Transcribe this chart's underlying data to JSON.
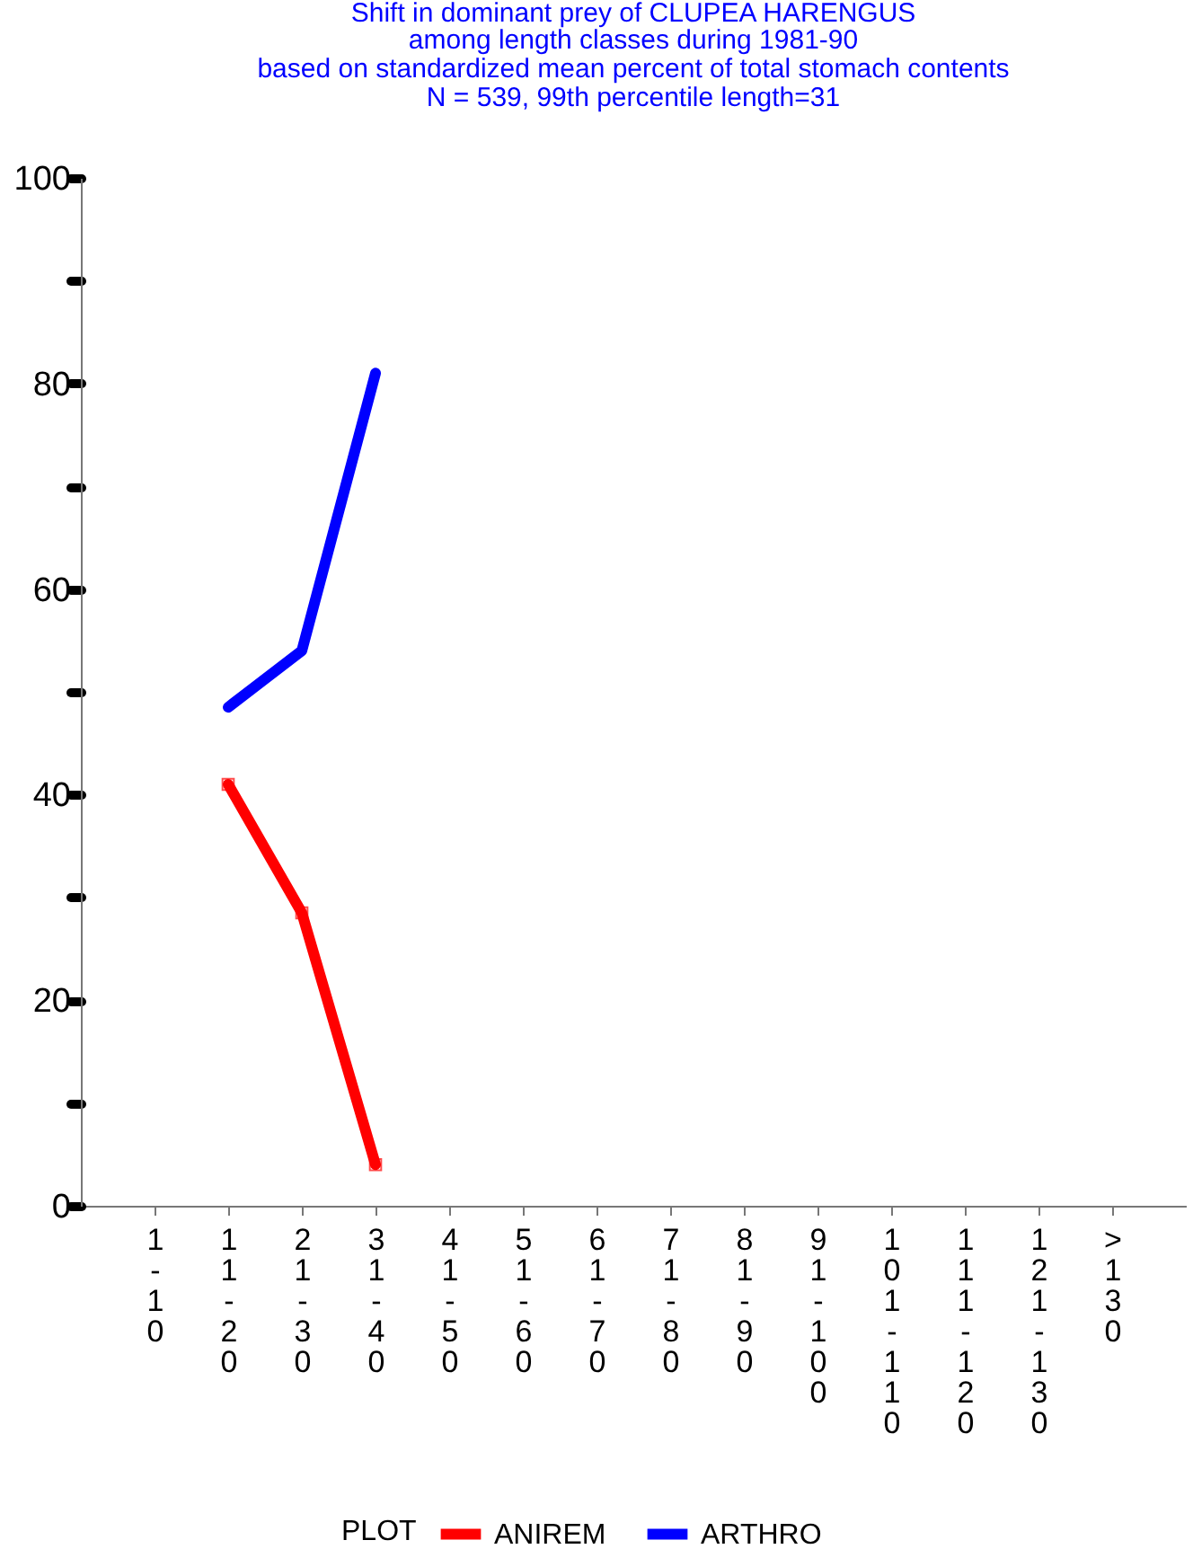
{
  "chart_data": {
    "type": "line",
    "title": "Shift in dominant prey of CLUPEA HARENGUS",
    "subtitle": "among length classes during 1981-90\nbased on standardized mean percent of  total stomach contents\nN = 539, 99th percentile  length=31",
    "categories": [
      "1-10",
      "11-20",
      "21-30",
      "31-40",
      "41-50",
      "51-60",
      "61-70",
      "71-80",
      "81-90",
      "91-100",
      "101-110",
      "111-120",
      "121-130",
      ">130"
    ],
    "series": [
      {
        "name": "ANIREM",
        "color": "#ff0000",
        "marker": "square",
        "values": [
          null,
          41,
          28.5,
          4,
          null,
          null,
          null,
          null,
          null,
          null,
          null,
          null,
          null,
          null
        ]
      },
      {
        "name": "ARTHRO",
        "color": "#0000ff",
        "marker": "none",
        "values": [
          null,
          48.5,
          54,
          81,
          null,
          null,
          null,
          null,
          null,
          null,
          null,
          null,
          null,
          null
        ]
      }
    ],
    "ylim": [
      0,
      100
    ],
    "yticks": [
      0,
      {
        "value": 10,
        "label": null
      },
      20,
      {
        "value": 30,
        "label": null
      },
      40,
      {
        "value": 50,
        "label": null
      },
      60,
      {
        "value": 70,
        "label": null
      },
      80,
      {
        "value": 90,
        "label": null
      },
      100
    ],
    "legend_title": "PLOT",
    "legend": "bottom",
    "grid": false
  }
}
